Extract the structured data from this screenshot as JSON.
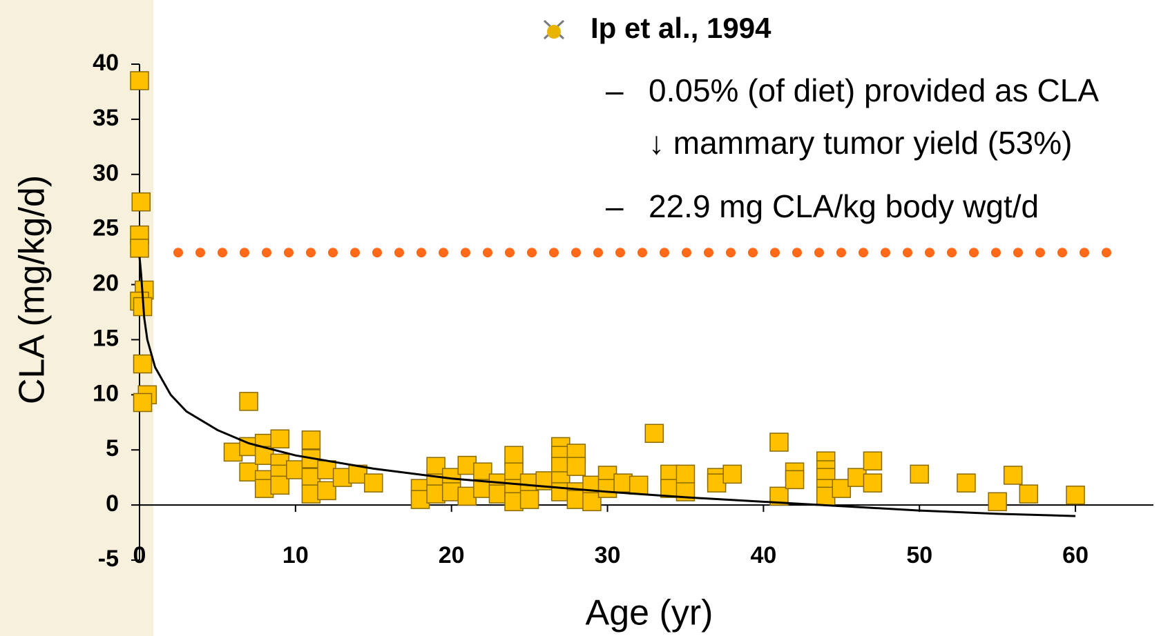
{
  "chart_data": {
    "type": "scatter",
    "xlabel": "Age (yr)",
    "ylabel": "CLA (mg/kg/d)",
    "xlim": [
      0,
      65
    ],
    "ylim": [
      -5,
      40
    ],
    "xticks": [
      0,
      10,
      20,
      30,
      40,
      50,
      60
    ],
    "yticks": [
      -5,
      0,
      5,
      10,
      15,
      20,
      25,
      30,
      35,
      40
    ],
    "series": [
      {
        "color": "#ffc000",
        "x": [
          0,
          0.1,
          0,
          0,
          0.3,
          0,
          0.2,
          0.2,
          0.5,
          0.2,
          6,
          7,
          7,
          7,
          8,
          8,
          8,
          8,
          9,
          9,
          9,
          9,
          10,
          11,
          11,
          11,
          11,
          12,
          12,
          13,
          14,
          15,
          18,
          18,
          19,
          19,
          19,
          20,
          20,
          21,
          21,
          22,
          22,
          23,
          23,
          24,
          24,
          24,
          24,
          25,
          25,
          26,
          27,
          27,
          27,
          27,
          27,
          28,
          28,
          28,
          28,
          29,
          29,
          30,
          30,
          31,
          32,
          33,
          34,
          34,
          35,
          35,
          37,
          37,
          38,
          41,
          41,
          42,
          42,
          44,
          44,
          44,
          44,
          44,
          45,
          46,
          47,
          47,
          50,
          53,
          55,
          56,
          57,
          60
        ],
        "values": [
          38.5,
          27.5,
          24.5,
          23.3,
          19.5,
          18.5,
          18,
          12.8,
          10,
          9.3,
          4.8,
          9.4,
          5.3,
          3,
          5.6,
          4.5,
          2.3,
          1.5,
          6,
          3.8,
          2.8,
          1.8,
          3.2,
          5.9,
          4.2,
          2.5,
          1,
          3.2,
          1.3,
          2.5,
          2.8,
          2,
          1.5,
          0.5,
          3.5,
          2,
          1,
          2.5,
          1.2,
          3.6,
          0.8,
          3,
          1.5,
          2,
          1,
          4.5,
          3,
          1.5,
          0.3,
          2,
          0.5,
          2.2,
          5.3,
          4.5,
          3.5,
          2.2,
          1.2,
          4.7,
          3.5,
          1.2,
          0.5,
          1.8,
          0.3,
          2.7,
          1.5,
          2,
          1.8,
          6.5,
          2.8,
          1.5,
          2.8,
          1.2,
          2.5,
          2,
          2.8,
          5.7,
          0.8,
          3,
          2.3,
          4,
          3.2,
          2.5,
          1.5,
          0.8,
          1.5,
          2.5,
          4,
          2,
          2.8,
          2,
          0.3,
          2.7,
          1,
          0.9
        ]
      }
    ],
    "curve": {
      "color": "#000000",
      "x": [
        0,
        0.1,
        0.3,
        0.5,
        1,
        2,
        3,
        5,
        7,
        10,
        15,
        20,
        25,
        30,
        35,
        40,
        45,
        50,
        55,
        60
      ],
      "y": [
        22.5,
        21,
        17,
        15,
        12.5,
        10,
        8.5,
        6.8,
        5.6,
        4.5,
        3.3,
        2.4,
        1.8,
        1.2,
        0.7,
        0.3,
        -0.1,
        -0.5,
        -0.8,
        -1
      ]
    },
    "reference_line": {
      "value": 22.9,
      "color": "#ff6a1a"
    },
    "annotation": {
      "heading": "Ip et al., 1994",
      "items": [
        {
          "marker": "–",
          "lines": [
            "0.05% (of diet) provided as CLA",
            "↓ mammary tumor yield (53%)"
          ]
        },
        {
          "marker": "–",
          "lines": [
            "22.9 mg CLA/kg body wgt/d"
          ]
        }
      ]
    }
  }
}
